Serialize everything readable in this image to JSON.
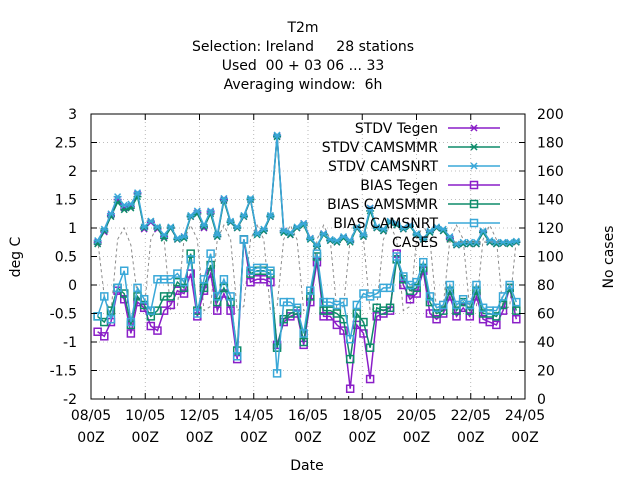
{
  "chart_data": {
    "type": "line",
    "title_lines": [
      "T2m",
      "Selection: Ireland     28 stations",
      "Used  00 + 03 06 ... 33",
      "Averaging window:  6h"
    ],
    "xlabel": "Date",
    "ylabel": "deg C",
    "y2label": "No cases",
    "xlim": [
      "2019-05-08 00:00",
      "2019-05-24 00:00"
    ],
    "ylim": [
      -2,
      3
    ],
    "y2lim": [
      0,
      200
    ],
    "grid": true,
    "legend_position": "top-right",
    "x_tick_labels": [
      [
        "08/05",
        "00Z"
      ],
      [
        "10/05",
        "00Z"
      ],
      [
        "12/05",
        "00Z"
      ],
      [
        "14/05",
        "00Z"
      ],
      [
        "16/05",
        "00Z"
      ],
      [
        "18/05",
        "00Z"
      ],
      [
        "20/05",
        "00Z"
      ],
      [
        "22/05",
        "00Z"
      ],
      [
        "24/05",
        "00Z"
      ]
    ],
    "y_tick_labels": [
      "-2",
      "-1.5",
      "-1",
      "-0.5",
      "0",
      "0.5",
      "1",
      "1.5",
      "2",
      "2.5",
      "3"
    ],
    "y2_tick_labels": [
      "0",
      "20",
      "40",
      "60",
      "80",
      "100",
      "120",
      "140",
      "160",
      "180",
      "200"
    ],
    "series": [
      {
        "name": "STDV Tegen",
        "axis": "left",
        "style": "line-star",
        "color": "#8a1ec8",
        "values": [
          0.75,
          0.93,
          1.22,
          1.5,
          1.35,
          1.38,
          1.6,
          0.98,
          1.1,
          0.98,
          0.85,
          1.0,
          0.8,
          0.85,
          1.2,
          1.27,
          1.0,
          1.28,
          0.85,
          1.5,
          1.1,
          1.0,
          1.2,
          1.5,
          0.9,
          0.95,
          1.2,
          2.62,
          0.95,
          0.88,
          1.0,
          1.08,
          0.82,
          0.68,
          0.9,
          0.78,
          0.75,
          0.83,
          0.77,
          1.0,
          0.85,
          1.35,
          1.0,
          0.95,
          1.1,
          1.05,
          0.98,
          1.05,
          0.88,
          0.8,
          0.93,
          1.0,
          0.95,
          0.82,
          0.7,
          0.72,
          0.72,
          0.72,
          0.93,
          0.75,
          0.72,
          0.73,
          0.73,
          0.75
        ]
      },
      {
        "name": "STDV CAMSMMR",
        "axis": "left",
        "style": "line-star",
        "color": "#0e8c6a",
        "values": [
          0.72,
          0.95,
          1.2,
          1.45,
          1.32,
          1.35,
          1.55,
          1.0,
          1.12,
          1.0,
          0.82,
          1.0,
          0.8,
          0.82,
          1.2,
          1.25,
          1.02,
          1.25,
          0.85,
          1.48,
          1.1,
          1.0,
          1.2,
          1.5,
          0.88,
          0.95,
          1.2,
          2.6,
          0.92,
          0.88,
          1.0,
          1.05,
          0.8,
          0.68,
          0.88,
          0.78,
          0.75,
          0.82,
          0.75,
          1.0,
          0.85,
          1.3,
          1.0,
          0.95,
          1.1,
          1.05,
          0.98,
          1.03,
          0.88,
          0.8,
          0.92,
          1.0,
          0.95,
          0.8,
          0.7,
          0.72,
          0.72,
          0.72,
          0.92,
          0.75,
          0.72,
          0.73,
          0.72,
          0.75
        ]
      },
      {
        "name": "STDV CAMSNRT",
        "axis": "left",
        "style": "line-star",
        "color": "#3aa8d8",
        "values": [
          0.78,
          0.98,
          1.25,
          1.55,
          1.4,
          1.42,
          1.62,
          1.02,
          1.12,
          1.02,
          0.88,
          1.02,
          0.82,
          0.85,
          1.22,
          1.3,
          1.05,
          1.3,
          0.88,
          1.52,
          1.12,
          1.02,
          1.22,
          1.52,
          0.9,
          0.98,
          1.22,
          2.63,
          0.95,
          0.92,
          1.02,
          1.08,
          0.82,
          0.7,
          0.9,
          0.8,
          0.78,
          0.85,
          0.78,
          1.02,
          0.88,
          1.35,
          1.02,
          0.98,
          1.12,
          1.08,
          1.0,
          1.05,
          0.9,
          0.82,
          0.95,
          1.02,
          0.98,
          0.85,
          0.72,
          0.75,
          0.75,
          0.75,
          0.95,
          0.78,
          0.75,
          0.75,
          0.75,
          0.77
        ]
      },
      {
        "name": "BIAS Tegen",
        "axis": "left",
        "style": "line-square",
        "color": "#8a1ec8",
        "values": [
          -0.82,
          -0.9,
          -0.65,
          -0.1,
          -0.25,
          -0.85,
          -0.3,
          -0.4,
          -0.72,
          -0.8,
          -0.45,
          -0.35,
          -0.1,
          -0.15,
          0.2,
          -0.55,
          -0.1,
          0.2,
          -0.45,
          -0.15,
          -0.45,
          -1.3,
          0.8,
          0.05,
          0.1,
          0.1,
          0.05,
          -1.05,
          -0.65,
          -0.55,
          -0.5,
          -1.05,
          -0.3,
          0.4,
          -0.55,
          -0.55,
          -0.7,
          -0.8,
          -1.82,
          -0.7,
          -0.85,
          -1.65,
          -0.55,
          -0.5,
          -0.45,
          0.55,
          0.0,
          -0.25,
          -0.15,
          0.25,
          -0.5,
          -0.6,
          -0.5,
          -0.2,
          -0.55,
          -0.4,
          -0.55,
          -0.2,
          -0.6,
          -0.65,
          -0.7,
          -0.45,
          -0.05,
          -0.6
        ]
      },
      {
        "name": "BIAS CAMSMMR",
        "axis": "left",
        "style": "line-square",
        "color": "#0e8c6a",
        "values": [
          -0.55,
          -0.65,
          -0.45,
          -0.05,
          -0.15,
          -0.7,
          -0.2,
          -0.35,
          -0.55,
          -0.45,
          -0.2,
          -0.2,
          0.05,
          -0.05,
          0.55,
          -0.45,
          -0.05,
          0.35,
          -0.3,
          -0.05,
          -0.3,
          -1.15,
          0.8,
          0.2,
          0.25,
          0.25,
          0.2,
          -1.1,
          -0.6,
          -0.5,
          -0.45,
          -1.0,
          -0.2,
          0.5,
          -0.45,
          -0.45,
          -0.5,
          -0.6,
          -1.3,
          -0.5,
          -0.65,
          -1.1,
          -0.4,
          -0.45,
          -0.4,
          0.45,
          0.1,
          -0.1,
          -0.05,
          0.3,
          -0.3,
          -0.5,
          -0.45,
          -0.1,
          -0.45,
          -0.3,
          -0.45,
          -0.1,
          -0.5,
          -0.5,
          -0.55,
          -0.35,
          -0.05,
          -0.45
        ]
      },
      {
        "name": "BIAS CAMSNRT",
        "axis": "left",
        "style": "line-square",
        "color": "#3aa8d8",
        "values": [
          -0.55,
          -0.2,
          -0.6,
          -0.05,
          0.25,
          -0.65,
          -0.05,
          -0.25,
          -0.45,
          0.1,
          0.1,
          0.1,
          0.2,
          0.05,
          0.45,
          -0.5,
          0.1,
          0.55,
          -0.2,
          0.1,
          -0.2,
          -1.25,
          0.8,
          0.25,
          0.3,
          0.3,
          0.25,
          -1.55,
          -0.3,
          -0.3,
          -0.4,
          -0.85,
          -0.1,
          0.55,
          -0.3,
          -0.3,
          -0.35,
          -0.3,
          -0.95,
          -0.35,
          -0.15,
          -0.2,
          -0.15,
          -0.05,
          -0.05,
          0.5,
          0.15,
          0.0,
          0.05,
          0.4,
          -0.2,
          -0.4,
          -0.35,
          0.0,
          -0.35,
          -0.25,
          -0.35,
          0.0,
          -0.4,
          -0.45,
          -0.45,
          -0.2,
          0.0,
          -0.3
        ]
      },
      {
        "name": "CASES",
        "axis": "right",
        "style": "dashed",
        "color": "#8c8c8c",
        "values": [
          112,
          72,
          60,
          112,
          120,
          108,
          72,
          62,
          112,
          122,
          112,
          62,
          65,
          112,
          122,
          112,
          62,
          65,
          112,
          122,
          112,
          62,
          65,
          112,
          122,
          112,
          62,
          65,
          112,
          122,
          112,
          62,
          65,
          112,
          122,
          112,
          62,
          65,
          112,
          122,
          112,
          62,
          65,
          112,
          122,
          112,
          62,
          65,
          112,
          122,
          112,
          62,
          65,
          112,
          122,
          112,
          62,
          65,
          112,
          122,
          112,
          62,
          65,
          112
        ]
      }
    ]
  }
}
